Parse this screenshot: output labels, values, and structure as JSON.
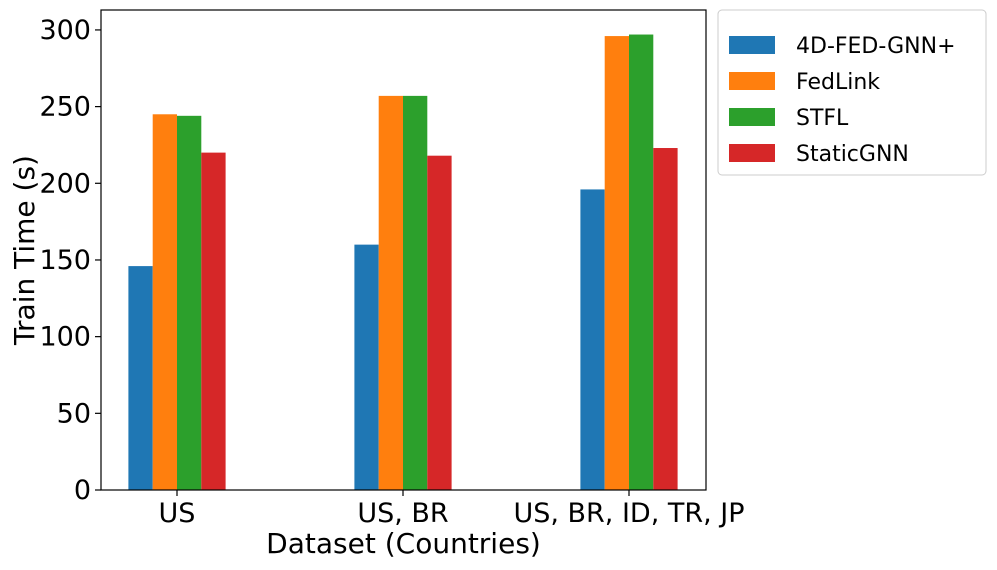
{
  "chart_data": {
    "type": "bar",
    "title": "",
    "xlabel": "Dataset (Countries)",
    "ylabel": "Train Time (s)",
    "categories": [
      "US",
      "US, BR",
      "US, BR, ID, TR, JP"
    ],
    "series": [
      {
        "name": "4D-FED-GNN+",
        "values": [
          146,
          160,
          196
        ],
        "color": "#1f77b4"
      },
      {
        "name": "FedLink",
        "values": [
          245,
          257,
          296
        ],
        "color": "#ff7f0e"
      },
      {
        "name": "STFL",
        "values": [
          244,
          257,
          297
        ],
        "color": "#2ca02c"
      },
      {
        "name": "StaticGNN",
        "values": [
          220,
          218,
          223
        ],
        "color": "#d62728"
      }
    ],
    "ylim": [
      0,
      313
    ],
    "yticks": [
      0,
      50,
      100,
      150,
      200,
      250,
      300
    ],
    "grid": false,
    "legend": "outside-top-right"
  }
}
